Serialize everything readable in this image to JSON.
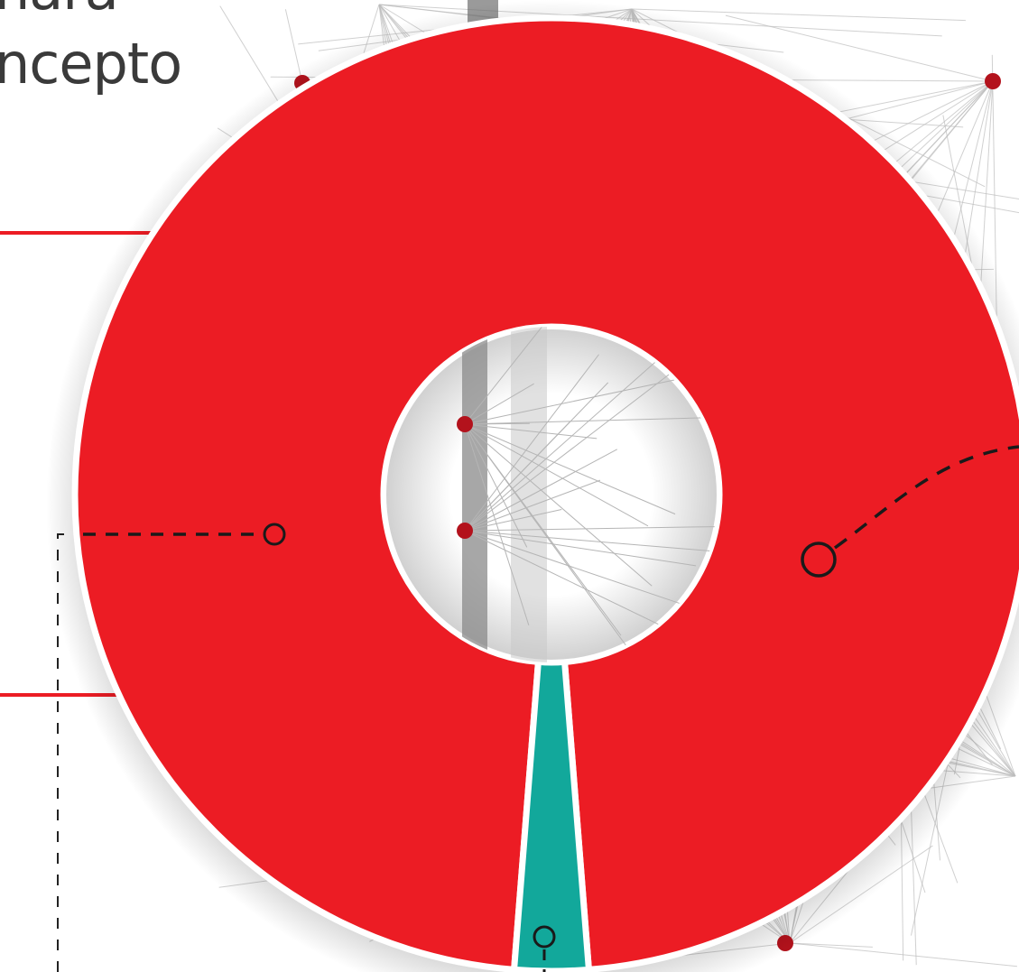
{
  "heading": {
    "line1": "nara",
    "line2": "ncepto"
  },
  "colors": {
    "primary": "#ec1c24",
    "secondary": "#12a89b",
    "dot": "#b3121c",
    "background_lines": "#bdbdbd"
  },
  "chart_data": {
    "type": "pie",
    "variant": "donut",
    "title": "",
    "slices": [
      {
        "color": "#ec1c24",
        "value": 97.5
      },
      {
        "color": "#12a89b",
        "value": 2.5
      }
    ],
    "legend": "none",
    "grid": false
  }
}
